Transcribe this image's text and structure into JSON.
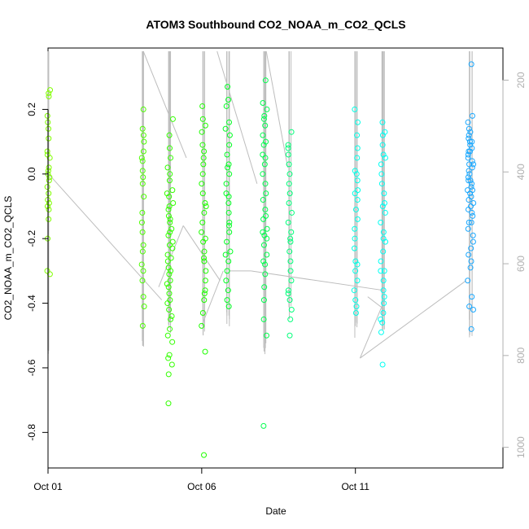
{
  "chart_data": {
    "type": "scatter",
    "title": "ATOM3 Southbound CO2_NOAA_m_CO2_QCLS",
    "xlabel": "Date",
    "ylabel": "CO2_NOAA_m_CO2_QCLS",
    "xlim": [
      0.0,
      14.8
    ],
    "ylim": [
      -0.91,
      0.39
    ],
    "x_ticks": [
      {
        "value": 0,
        "label": "Oct 01"
      },
      {
        "value": 5,
        "label": "Oct 06"
      },
      {
        "value": 10,
        "label": "Oct 11"
      }
    ],
    "y_ticks": [
      {
        "value": -0.8,
        "label": "-0.8"
      },
      {
        "value": -0.6,
        "label": "-0.6"
      },
      {
        "value": -0.4,
        "label": "-0.4"
      },
      {
        "value": -0.2,
        "label": "-0.2"
      },
      {
        "value": 0.0,
        "label": "0.0"
      },
      {
        "value": 0.2,
        "label": "0.2"
      }
    ],
    "right_axis": {
      "description": "secondary axis (inverted)",
      "lim": [
        1045,
        130
      ],
      "ticks": [
        {
          "value": 200,
          "label": "200"
        },
        {
          "value": 400,
          "label": "400"
        },
        {
          "value": 600,
          "label": "600"
        },
        {
          "value": 800,
          "label": "800"
        },
        {
          "value": 1000,
          "label": "1000"
        }
      ],
      "color": "#b0b0b0"
    },
    "profile_line_color": "#bdbdbd",
    "series": [
      {
        "color": "#80ff00",
        "x_center": 0.02,
        "x_spread": 0.05,
        "values": [
          0.25,
          0.24,
          0.18,
          0.16,
          0.14,
          0.11,
          0.07,
          0.05,
          0.02,
          0.01,
          0.0,
          -0.01,
          -0.02,
          -0.04,
          -0.06,
          -0.08,
          -0.09,
          -0.1,
          -0.11,
          -0.14,
          -0.2,
          -0.3,
          -0.31,
          0.26,
          0.06
        ]
      },
      {
        "color": "#4cff00",
        "x_center": 3.08,
        "x_spread": 0.05,
        "values": [
          0.2,
          0.14,
          0.12,
          0.1,
          0.07,
          0.04,
          0.01,
          -0.01,
          -0.03,
          -0.07,
          -0.12,
          -0.15,
          -0.18,
          -0.24,
          -0.28,
          -0.3,
          -0.33,
          -0.38,
          -0.41,
          -0.47,
          0.05,
          -0.22
        ]
      },
      {
        "color": "#33ff00",
        "x_center": 3.97,
        "x_spread": 0.1,
        "values": [
          0.17,
          0.12,
          0.08,
          0.05,
          0.02,
          -0.02,
          -0.05,
          -0.07,
          -0.1,
          -0.13,
          -0.15,
          -0.17,
          -0.19,
          -0.21,
          -0.23,
          -0.25,
          -0.27,
          -0.29,
          -0.31,
          -0.33,
          -0.35,
          -0.37,
          -0.39,
          -0.42,
          -0.45,
          -0.48,
          -0.52,
          -0.56,
          -0.59,
          -0.62,
          -0.71,
          -0.06,
          -0.09,
          -0.14,
          -0.18,
          -0.22,
          -0.26,
          -0.3,
          -0.34,
          -0.4,
          -0.44,
          -0.5,
          -0.57,
          0.0,
          -0.11
        ]
      },
      {
        "color": "#1fff00",
        "x_center": 5.07,
        "x_spread": 0.08,
        "values": [
          0.21,
          0.17,
          0.13,
          0.09,
          0.05,
          0.03,
          0.0,
          -0.03,
          -0.06,
          -0.09,
          -0.12,
          -0.15,
          -0.18,
          -0.21,
          -0.24,
          -0.27,
          -0.3,
          -0.33,
          -0.36,
          -0.39,
          -0.43,
          -0.47,
          -0.55,
          -0.87,
          0.15,
          -0.1,
          -0.2,
          -0.26,
          0.07,
          -0.37
        ]
      },
      {
        "color": "#00ff22",
        "x_center": 5.85,
        "x_spread": 0.08,
        "values": [
          0.27,
          0.21,
          0.16,
          0.12,
          0.09,
          0.06,
          0.03,
          0.0,
          -0.03,
          -0.06,
          -0.09,
          -0.12,
          -0.15,
          -0.18,
          -0.21,
          -0.24,
          -0.27,
          -0.3,
          -0.33,
          -0.36,
          -0.39,
          -0.41,
          0.14,
          -0.07,
          -0.25,
          0.02,
          -0.16,
          0.23
        ]
      },
      {
        "color": "#00ff4d",
        "x_center": 7.05,
        "x_spread": 0.08,
        "values": [
          0.29,
          0.22,
          0.18,
          0.15,
          0.12,
          0.09,
          0.06,
          0.03,
          0.0,
          -0.03,
          -0.06,
          -0.08,
          -0.11,
          -0.14,
          -0.17,
          -0.19,
          -0.22,
          -0.25,
          -0.28,
          -0.31,
          -0.35,
          -0.39,
          -0.45,
          -0.5,
          -0.78,
          0.2,
          0.1,
          -0.13,
          -0.2,
          0.17,
          -0.18,
          0.05,
          -0.27
        ]
      },
      {
        "color": "#00ff7a",
        "x_center": 7.87,
        "x_spread": 0.06,
        "values": [
          0.13,
          0.09,
          0.06,
          0.03,
          0.0,
          -0.03,
          -0.06,
          -0.09,
          -0.12,
          -0.15,
          -0.18,
          -0.21,
          -0.24,
          -0.27,
          -0.3,
          -0.33,
          -0.36,
          -0.39,
          -0.42,
          -0.45,
          -0.5,
          0.08,
          -0.2,
          -0.37
        ]
      },
      {
        "color": "#00ffe6",
        "x_center": 10.02,
        "x_spread": 0.06,
        "values": [
          0.2,
          0.16,
          0.12,
          0.08,
          0.05,
          0.01,
          -0.02,
          -0.05,
          -0.08,
          -0.11,
          -0.14,
          -0.17,
          -0.2,
          -0.23,
          -0.27,
          -0.3,
          -0.33,
          -0.36,
          -0.39,
          -0.41,
          -0.43,
          0.0,
          -0.28,
          -0.06
        ]
      },
      {
        "color": "#00fff2",
        "x_center": 10.9,
        "x_spread": 0.08,
        "values": [
          0.16,
          0.13,
          0.09,
          0.06,
          0.03,
          0.0,
          -0.03,
          -0.06,
          -0.09,
          -0.12,
          -0.15,
          -0.18,
          -0.21,
          -0.24,
          -0.27,
          -0.3,
          -0.33,
          -0.36,
          -0.38,
          -0.4,
          -0.43,
          -0.46,
          -0.49,
          -0.59,
          0.05,
          -0.1,
          -0.2,
          -0.3,
          -0.45,
          0.12
        ]
      },
      {
        "color": "#1aa8ff",
        "x_center": 13.75,
        "x_spread": 0.1,
        "values": [
          0.34,
          0.18,
          0.16,
          0.14,
          0.13,
          0.11,
          0.1,
          0.09,
          0.08,
          0.07,
          0.06,
          0.05,
          0.04,
          0.03,
          0.02,
          0.01,
          0.0,
          -0.01,
          -0.02,
          -0.03,
          -0.04,
          -0.05,
          -0.06,
          -0.07,
          -0.08,
          -0.09,
          -0.1,
          -0.11,
          -0.12,
          -0.13,
          -0.15,
          -0.17,
          -0.19,
          -0.21,
          -0.23,
          -0.25,
          -0.27,
          -0.29,
          -0.33,
          -0.38,
          -0.41,
          -0.42,
          -0.48,
          0.1,
          0.03,
          -0.05,
          0.12,
          -0.02,
          -0.15,
          0.07
        ]
      }
    ],
    "profiles": [
      {
        "x": 0.02,
        "w": 0.06,
        "top": 0.38,
        "bottom": -0.56
      },
      {
        "x": 3.08,
        "w": 0.06,
        "top": 0.38,
        "bottom": -0.56
      },
      {
        "x": 3.97,
        "w": 0.14,
        "top": 0.38,
        "bottom": -0.5
      },
      {
        "x": 5.07,
        "w": 0.12,
        "top": 0.38,
        "bottom": -0.5
      },
      {
        "x": 5.85,
        "w": 0.12,
        "top": 0.38,
        "bottom": -0.48
      },
      {
        "x": 7.05,
        "w": 0.1,
        "top": 0.38,
        "bottom": -0.57
      },
      {
        "x": 7.87,
        "w": 0.08,
        "top": 0.38,
        "bottom": -0.46
      },
      {
        "x": 10.02,
        "w": 0.08,
        "top": 0.38,
        "bottom": -0.51
      },
      {
        "x": 10.9,
        "w": 0.1,
        "top": 0.38,
        "bottom": -0.5
      },
      {
        "x": 13.75,
        "w": 0.14,
        "top": 0.38,
        "bottom": -0.51
      }
    ],
    "transit_lines": [
      [
        [
          0.02,
          -0.0
        ],
        [
          3.7,
          -0.39
        ]
      ],
      [
        [
          3.1,
          0.38
        ],
        [
          4.5,
          0.05
        ]
      ],
      [
        [
          3.6,
          -0.35
        ],
        [
          4.4,
          -0.16
        ]
      ],
      [
        [
          4.4,
          -0.16
        ],
        [
          5.6,
          -0.33
        ]
      ],
      [
        [
          5.0,
          -0.47
        ],
        [
          5.7,
          -0.3
        ]
      ],
      [
        [
          5.5,
          0.38
        ],
        [
          6.8,
          -0.03
        ]
      ],
      [
        [
          7.1,
          0.38
        ],
        [
          7.8,
          0.02
        ]
      ],
      [
        [
          6.6,
          -0.3
        ],
        [
          10.9,
          -0.36
        ]
      ],
      [
        [
          10.4,
          -0.38
        ],
        [
          10.95,
          -0.42
        ]
      ],
      [
        [
          10.15,
          -0.57
        ],
        [
          10.95,
          -0.39
        ]
      ],
      [
        [
          10.15,
          -0.57
        ],
        [
          13.6,
          -0.33
        ]
      ],
      [
        [
          5.9,
          -0.3
        ],
        [
          6.6,
          -0.3
        ]
      ]
    ]
  }
}
